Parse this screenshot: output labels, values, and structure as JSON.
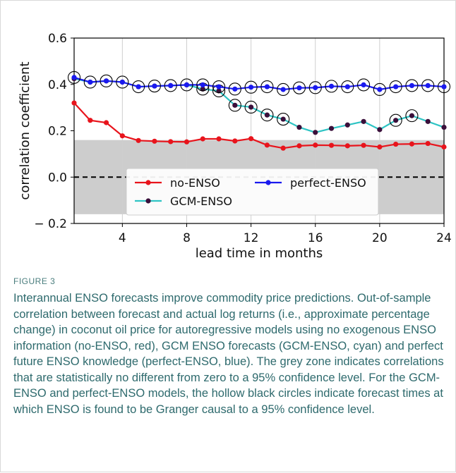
{
  "figure": {
    "label": "FIGURE 3",
    "caption": "Interannual ENSO forecasts improve commodity price predictions. Out-of-sample correlation between forecast and actual log returns (i.e., approximate percentage change) in coconut oil price for autoregressive models using no exogenous ENSO information (no-ENSO, red), GCM ENSO forecasts (GCM-ENSO, cyan) and perfect future ENSO knowledge (perfect-ENSO, blue). The grey zone indicates correlations that are statistically no different from zero to a 95% confidence level. For the GCM-ENSO and perfect-ENSO models, the hollow black circles indicate forecast times at which ENSO is found to be Granger causal to a 95% confidence level."
  },
  "chart_data": {
    "type": "line",
    "xlabel": "lead time in months",
    "ylabel": "correlation coefficient",
    "xlim": [
      1,
      24
    ],
    "ylim": [
      -0.2,
      0.6
    ],
    "xticks": [
      4,
      8,
      12,
      16,
      20,
      24
    ],
    "yticks": [
      -0.2,
      0.0,
      0.2,
      0.4,
      0.6
    ],
    "ytick_labels": [
      "− 0.2",
      "0.0",
      "0.2",
      "0.4",
      "0.6"
    ],
    "grid": "vertical",
    "significance_band": [
      -0.16,
      0.16
    ],
    "zero_line": "dashed",
    "legend_location": "lower center",
    "x": [
      1,
      2,
      3,
      4,
      5,
      6,
      7,
      8,
      9,
      10,
      11,
      12,
      13,
      14,
      15,
      16,
      17,
      18,
      19,
      20,
      21,
      22,
      23,
      24
    ],
    "series": [
      {
        "name": "no-ENSO",
        "color": "#e8141c",
        "marker_color": "#e8141c",
        "values": [
          0.32,
          0.245,
          0.235,
          0.178,
          0.158,
          0.155,
          0.153,
          0.152,
          0.165,
          0.165,
          0.156,
          0.166,
          0.138,
          0.125,
          0.135,
          0.138,
          0.137,
          0.135,
          0.137,
          0.13,
          0.142,
          0.143,
          0.145,
          0.13
        ],
        "granger": []
      },
      {
        "name": "GCM-ENSO",
        "color": "#2ec4c4",
        "marker_color": "#3a0f3a",
        "values": [
          0.425,
          0.41,
          0.415,
          0.41,
          0.39,
          0.393,
          0.395,
          0.398,
          0.38,
          0.372,
          0.31,
          0.302,
          0.268,
          0.25,
          0.215,
          0.193,
          0.21,
          0.225,
          0.24,
          0.205,
          0.245,
          0.265,
          0.24,
          0.215
        ],
        "granger": [
          9,
          10,
          11,
          12,
          13,
          14,
          21,
          22
        ]
      },
      {
        "name": "perfect-ENSO",
        "color": "#1a1aee",
        "marker_color": "#1a1aee",
        "values": [
          0.43,
          0.41,
          0.415,
          0.41,
          0.39,
          0.393,
          0.395,
          0.398,
          0.398,
          0.39,
          0.38,
          0.388,
          0.39,
          0.378,
          0.385,
          0.386,
          0.392,
          0.39,
          0.398,
          0.378,
          0.39,
          0.395,
          0.395,
          0.39
        ],
        "granger": [
          1,
          2,
          3,
          4,
          5,
          6,
          7,
          8,
          9,
          10,
          11,
          12,
          13,
          14,
          15,
          16,
          17,
          18,
          19,
          20,
          21,
          22,
          23,
          24
        ]
      }
    ]
  }
}
